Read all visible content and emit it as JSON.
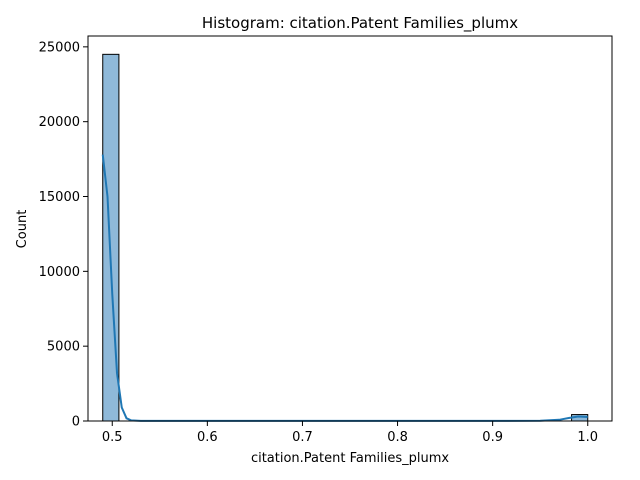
{
  "chart_data": {
    "type": "bar",
    "title": "Histogram: citation.Patent Families_plumx",
    "xlabel": "citation.Patent Families_plumx",
    "ylabel": "Count",
    "xlim": [
      0.4745,
      1.0255
    ],
    "ylim": [
      0,
      25725
    ],
    "xticks": [
      0.5,
      0.6,
      0.7,
      0.8,
      0.9,
      1.0
    ],
    "xtick_labels": [
      "0.5",
      "0.6",
      "0.7",
      "0.8",
      "0.9",
      "1.0"
    ],
    "yticks": [
      0,
      5000,
      10000,
      15000,
      20000,
      25000
    ],
    "ytick_labels": [
      "0",
      "5000",
      "10000",
      "15000",
      "20000",
      "25000"
    ],
    "bins": [
      {
        "x0": 0.49,
        "x1": 0.507,
        "count": 24500
      },
      {
        "x0": 0.983,
        "x1": 1.0,
        "count": 430
      }
    ],
    "kde": {
      "x": [
        0.49,
        0.495,
        0.5,
        0.505,
        0.51,
        0.515,
        0.52,
        0.53,
        0.55,
        0.6,
        0.7,
        0.8,
        0.9,
        0.95,
        0.97,
        0.98,
        0.99,
        1.0
      ],
      "y": [
        17800,
        15000,
        8500,
        3200,
        900,
        180,
        40,
        10,
        5,
        5,
        5,
        5,
        5,
        20,
        80,
        200,
        300,
        270
      ]
    },
    "bar_color": "#8fb9d9",
    "bar_edge_color": "#000000",
    "kde_color": "#1f77b4",
    "grid": false
  }
}
